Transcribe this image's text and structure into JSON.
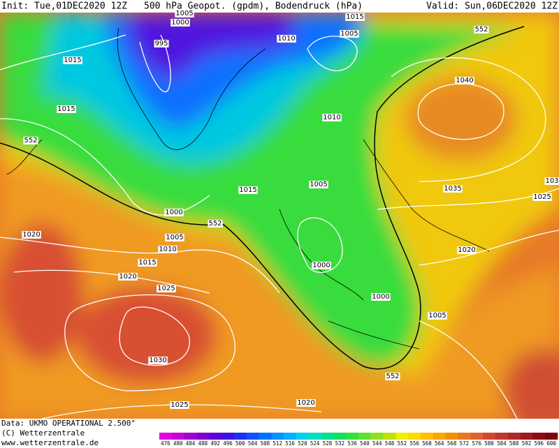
{
  "header": {
    "init": "Init: Tue,01DEC2020 12Z",
    "title": "500 hPa Geopot. (gpdm), Bodendruck (hPa)",
    "valid": "Valid: Sun,06DEC2020 12Z"
  },
  "isobars": [
    "1005",
    "1000",
    "995",
    "1015",
    "1010",
    "1005",
    "1015",
    "1040",
    "1015",
    "1010",
    "552",
    "1015",
    "1005",
    "1035",
    "103",
    "1025",
    "1000",
    "552",
    "1005",
    "1010",
    "1020",
    "1015",
    "1020",
    "1025",
    "1000",
    "1020",
    "1000",
    "1005",
    "1030",
    "552",
    "1025",
    "1020",
    "552"
  ],
  "footer": {
    "data": "Data: UKMO OPERATIONAL 2.500°",
    "copyright": "(C) Wetterzentrale",
    "url": "www.wetterzentrale.de"
  },
  "colorbar": {
    "labels": [
      "476",
      "480",
      "484",
      "488",
      "492",
      "496",
      "500",
      "504",
      "508",
      "512",
      "516",
      "520",
      "524",
      "528",
      "532",
      "536",
      "540",
      "544",
      "548",
      "552",
      "556",
      "560",
      "564",
      "568",
      "572",
      "576",
      "580",
      "584",
      "588",
      "592",
      "596",
      "600"
    ],
    "colors": [
      "#e000e0",
      "#c800d8",
      "#a000d0",
      "#8000d0",
      "#6000d8",
      "#4010e0",
      "#2030f0",
      "#1050ff",
      "#0070ff",
      "#0090ff",
      "#00b0ff",
      "#00d0f0",
      "#00e0c0",
      "#00e090",
      "#10e060",
      "#30e040",
      "#60e030",
      "#90e020",
      "#c0e010",
      "#f0f000",
      "#ffd800",
      "#ffc000",
      "#f8a800",
      "#f09000",
      "#e87820",
      "#e06030",
      "#d04830",
      "#c03828",
      "#b02828",
      "#a01820",
      "#900818",
      "#800010"
    ]
  }
}
